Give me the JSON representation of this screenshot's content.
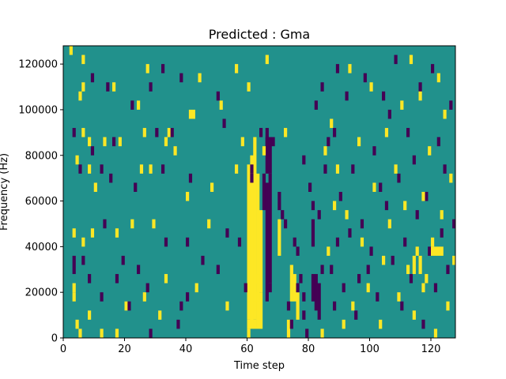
{
  "chart_data": {
    "type": "heatmap",
    "title": "Predicted : Gma",
    "xlabel": "Time step",
    "ylabel": "Frequency (Hz)",
    "xlim": [
      0,
      128
    ],
    "ylim": [
      0,
      128000
    ],
    "grid": false,
    "legend": "none",
    "n_time_steps": 128,
    "n_freq_bins": 32,
    "bin_width_hz": 4000,
    "colors": {
      "background": "#21918c",
      "high": "#fde725",
      "low": "#440154"
    },
    "x_ticks": [
      0,
      20,
      40,
      60,
      80,
      100,
      120
    ],
    "x_tick_labels": [
      "0",
      "20",
      "40",
      "60",
      "80",
      "100",
      "120"
    ],
    "y_ticks": [
      0,
      20000,
      40000,
      60000,
      80000,
      100000,
      120000
    ],
    "y_tick_labels": [
      "0",
      "20000",
      "40000",
      "60000",
      "80000",
      "100000",
      "120000"
    ],
    "cell_values_legend": "1 = yellow (high), -1 = purple (low), all other cells = teal (0)",
    "cells": [
      [
        2,
        124000,
        1
      ],
      [
        3,
        44000,
        1
      ],
      [
        3,
        20000,
        1
      ],
      [
        3,
        16000,
        1
      ],
      [
        3,
        32000,
        -1
      ],
      [
        3,
        88000,
        -1
      ],
      [
        3,
        28000,
        -1
      ],
      [
        4,
        4000,
        1
      ],
      [
        4,
        76000,
        1
      ],
      [
        5,
        0,
        1
      ],
      [
        5,
        104000,
        1
      ],
      [
        5,
        72000,
        -1
      ],
      [
        6,
        120000,
        1
      ],
      [
        6,
        108000,
        1
      ],
      [
        6,
        88000,
        1
      ],
      [
        6,
        40000,
        1
      ],
      [
        6,
        32000,
        -1
      ],
      [
        8,
        84000,
        1
      ],
      [
        8,
        72000,
        1
      ],
      [
        8,
        24000,
        -1
      ],
      [
        8,
        8000,
        1
      ],
      [
        9,
        80000,
        -1
      ],
      [
        9,
        44000,
        1
      ],
      [
        9,
        112000,
        -1
      ],
      [
        10,
        64000,
        1
      ],
      [
        12,
        0,
        1
      ],
      [
        12,
        72000,
        -1
      ],
      [
        12,
        16000,
        -1
      ],
      [
        13,
        48000,
        -1
      ],
      [
        13,
        84000,
        1
      ],
      [
        14,
        108000,
        -1
      ],
      [
        15,
        68000,
        -1
      ],
      [
        16,
        108000,
        1
      ],
      [
        16,
        84000,
        -1
      ],
      [
        17,
        0,
        1
      ],
      [
        17,
        44000,
        1
      ],
      [
        17,
        24000,
        -1
      ],
      [
        18,
        84000,
        1
      ],
      [
        19,
        32000,
        -1
      ],
      [
        20,
        12000,
        1
      ],
      [
        21,
        12000,
        -1
      ],
      [
        22,
        100000,
        -1
      ],
      [
        22,
        48000,
        1
      ],
      [
        23,
        64000,
        -1
      ],
      [
        24,
        100000,
        1
      ],
      [
        24,
        28000,
        -1
      ],
      [
        25,
        72000,
        1
      ],
      [
        26,
        16000,
        1
      ],
      [
        26,
        88000,
        1
      ],
      [
        27,
        20000,
        -1
      ],
      [
        27,
        116000,
        1
      ],
      [
        28,
        0,
        -1
      ],
      [
        28,
        108000,
        -1
      ],
      [
        28,
        72000,
        1
      ],
      [
        29,
        48000,
        1
      ],
      [
        30,
        88000,
        -1
      ],
      [
        31,
        8000,
        1
      ],
      [
        32,
        116000,
        -1
      ],
      [
        32,
        72000,
        -1
      ],
      [
        33,
        40000,
        -1
      ],
      [
        33,
        84000,
        1
      ],
      [
        33,
        24000,
        1
      ],
      [
        34,
        88000,
        1
      ],
      [
        35,
        88000,
        -1
      ],
      [
        36,
        80000,
        1
      ],
      [
        37,
        4000,
        -1
      ],
      [
        38,
        112000,
        -1
      ],
      [
        38,
        12000,
        -1
      ],
      [
        40,
        60000,
        1
      ],
      [
        40,
        40000,
        -1
      ],
      [
        40,
        16000,
        -1
      ],
      [
        41,
        68000,
        -1
      ],
      [
        41,
        96000,
        1
      ],
      [
        42,
        96000,
        1
      ],
      [
        43,
        20000,
        1
      ],
      [
        44,
        112000,
        1
      ],
      [
        45,
        32000,
        -1
      ],
      [
        47,
        48000,
        1
      ],
      [
        48,
        64000,
        1
      ],
      [
        50,
        28000,
        -1
      ],
      [
        50,
        104000,
        -1
      ],
      [
        51,
        100000,
        1
      ],
      [
        52,
        92000,
        -1
      ],
      [
        53,
        12000,
        1
      ],
      [
        53,
        44000,
        -1
      ],
      [
        56,
        116000,
        1
      ],
      [
        56,
        72000,
        1
      ],
      [
        57,
        40000,
        -1
      ],
      [
        58,
        84000,
        1
      ],
      [
        59,
        20000,
        -1
      ],
      [
        60,
        108000,
        1
      ],
      [
        60,
        0,
        1
      ],
      [
        60,
        4000,
        1
      ],
      [
        61,
        72000,
        -1
      ],
      [
        61,
        68000,
        -1
      ],
      [
        62,
        4000,
        1
      ],
      [
        62,
        12000,
        1
      ],
      [
        63,
        16000,
        1
      ],
      [
        63,
        24000,
        1
      ],
      [
        64,
        88000,
        -1
      ],
      [
        65,
        80000,
        1
      ],
      [
        66,
        120000,
        1
      ],
      [
        67,
        20000,
        -1
      ],
      [
        68,
        84000,
        -1
      ],
      [
        70,
        60000,
        -1
      ],
      [
        70,
        56000,
        -1
      ],
      [
        71,
        52000,
        -1
      ],
      [
        72,
        48000,
        -1
      ],
      [
        72,
        88000,
        1
      ],
      [
        73,
        12000,
        -1
      ],
      [
        74,
        4000,
        -1
      ],
      [
        75,
        40000,
        -1
      ],
      [
        76,
        36000,
        -1
      ],
      [
        76,
        20000,
        -1
      ],
      [
        77,
        24000,
        -1
      ],
      [
        78,
        8000,
        -1
      ],
      [
        78,
        16000,
        -1
      ],
      [
        78,
        76000,
        -1
      ],
      [
        79,
        0,
        -1
      ],
      [
        80,
        64000,
        -1
      ],
      [
        81,
        56000,
        -1
      ],
      [
        82,
        100000,
        -1
      ],
      [
        83,
        52000,
        -1
      ],
      [
        84,
        108000,
        -1
      ],
      [
        84,
        28000,
        -1
      ],
      [
        85,
        72000,
        -1
      ],
      [
        86,
        84000,
        -1
      ],
      [
        87,
        28000,
        -1
      ],
      [
        88,
        12000,
        -1
      ],
      [
        88,
        88000,
        -1
      ],
      [
        89,
        40000,
        -1
      ],
      [
        89,
        116000,
        -1
      ],
      [
        90,
        60000,
        -1
      ],
      [
        91,
        20000,
        -1
      ],
      [
        92,
        104000,
        -1
      ],
      [
        93,
        44000,
        -1
      ],
      [
        94,
        72000,
        -1
      ],
      [
        95,
        8000,
        -1
      ],
      [
        96,
        24000,
        -1
      ],
      [
        97,
        48000,
        -1
      ],
      [
        98,
        112000,
        -1
      ],
      [
        99,
        28000,
        -1
      ],
      [
        100,
        36000,
        -1
      ],
      [
        101,
        80000,
        -1
      ],
      [
        102,
        16000,
        -1
      ],
      [
        103,
        64000,
        -1
      ],
      [
        104,
        104000,
        -1
      ],
      [
        105,
        56000,
        -1
      ],
      [
        106,
        96000,
        -1
      ],
      [
        107,
        32000,
        -1
      ],
      [
        108,
        120000,
        -1
      ],
      [
        109,
        68000,
        -1
      ],
      [
        110,
        12000,
        -1
      ],
      [
        111,
        40000,
        -1
      ],
      [
        112,
        88000,
        -1
      ],
      [
        113,
        24000,
        -1
      ],
      [
        114,
        76000,
        -1
      ],
      [
        115,
        52000,
        -1
      ],
      [
        116,
        108000,
        -1
      ],
      [
        117,
        4000,
        -1
      ],
      [
        118,
        60000,
        -1
      ],
      [
        119,
        36000,
        -1
      ],
      [
        120,
        116000,
        -1
      ],
      [
        121,
        20000,
        -1
      ],
      [
        122,
        84000,
        -1
      ],
      [
        123,
        44000,
        -1
      ],
      [
        124,
        72000,
        -1
      ],
      [
        125,
        28000,
        -1
      ],
      [
        126,
        100000,
        -1
      ],
      [
        127,
        48000,
        -1
      ],
      [
        84,
        0,
        1
      ],
      [
        85,
        80000,
        1
      ],
      [
        86,
        36000,
        1
      ],
      [
        87,
        92000,
        1
      ],
      [
        88,
        56000,
        1
      ],
      [
        89,
        72000,
        1
      ],
      [
        91,
        4000,
        1
      ],
      [
        92,
        52000,
        1
      ],
      [
        93,
        116000,
        1
      ],
      [
        94,
        12000,
        1
      ],
      [
        96,
        84000,
        1
      ],
      [
        97,
        40000,
        1
      ],
      [
        99,
        20000,
        1
      ],
      [
        100,
        108000,
        1
      ],
      [
        101,
        64000,
        1
      ],
      [
        103,
        4000,
        1
      ],
      [
        104,
        32000,
        1
      ],
      [
        105,
        88000,
        1
      ],
      [
        106,
        48000,
        1
      ],
      [
        108,
        72000,
        1
      ],
      [
        109,
        16000,
        1
      ],
      [
        110,
        100000,
        1
      ],
      [
        111,
        56000,
        1
      ],
      [
        112,
        28000,
        1
      ],
      [
        113,
        120000,
        1
      ],
      [
        114,
        8000,
        1
      ],
      [
        115,
        36000,
        1
      ],
      [
        116,
        104000,
        1
      ],
      [
        117,
        60000,
        1
      ],
      [
        118,
        24000,
        1
      ],
      [
        119,
        80000,
        1
      ],
      [
        120,
        40000,
        1
      ],
      [
        121,
        0,
        1
      ],
      [
        122,
        112000,
        1
      ],
      [
        123,
        52000,
        1
      ],
      [
        124,
        96000,
        1
      ],
      [
        125,
        12000,
        1
      ],
      [
        126,
        68000,
        1
      ],
      [
        127,
        32000,
        1
      ],
      [
        114,
        28000,
        1
      ],
      [
        114,
        32000,
        1
      ],
      [
        116,
        28000,
        1
      ],
      [
        116,
        32000,
        1
      ],
      [
        117,
        20000,
        1
      ],
      [
        120,
        36000,
        1
      ],
      [
        121,
        36000,
        1
      ],
      [
        122,
        36000,
        1
      ],
      [
        123,
        36000,
        1
      ]
    ],
    "bands": [
      {
        "t": 60,
        "f_from": 8000,
        "f_to": 72000,
        "value": 1
      },
      {
        "t": 61,
        "f_from": 4000,
        "f_to": 76000,
        "value": 1
      },
      {
        "t": 62,
        "f_from": 8000,
        "f_to": 84000,
        "value": 1
      },
      {
        "t": 63,
        "f_from": 4000,
        "f_to": 68000,
        "value": 1
      },
      {
        "t": 64,
        "f_from": 20000,
        "f_to": 52000,
        "value": 1
      },
      {
        "t": 64,
        "f_from": 4000,
        "f_to": 16000,
        "value": 1
      },
      {
        "t": 65,
        "f_from": 56000,
        "f_to": 68000,
        "value": -1
      },
      {
        "t": 66,
        "f_from": 16000,
        "f_to": 64000,
        "value": -1
      },
      {
        "t": 67,
        "f_from": 24000,
        "f_to": 68000,
        "value": -1
      },
      {
        "t": 66,
        "f_from": 72000,
        "f_to": 84000,
        "value": -1
      },
      {
        "t": 67,
        "f_from": 72000,
        "f_to": 84000,
        "value": -1
      },
      {
        "t": 70,
        "f_from": 36000,
        "f_to": 48000,
        "value": 1
      },
      {
        "t": 73,
        "f_from": 0,
        "f_to": 4000,
        "value": 1
      },
      {
        "t": 74,
        "f_from": 16000,
        "f_to": 28000,
        "value": 1
      },
      {
        "t": 75,
        "f_from": 16000,
        "f_to": 24000,
        "value": 1
      },
      {
        "t": 76,
        "f_from": 8000,
        "f_to": 16000,
        "value": 1
      },
      {
        "t": 81,
        "f_from": 16000,
        "f_to": 24000,
        "value": -1
      },
      {
        "t": 82,
        "f_from": 12000,
        "f_to": 24000,
        "value": -1
      },
      {
        "t": 83,
        "f_from": 8000,
        "f_to": 20000,
        "value": -1
      },
      {
        "t": 81,
        "f_from": 40000,
        "f_to": 48000,
        "value": -1
      },
      {
        "t": 66,
        "f_from": 84000,
        "f_to": 88000,
        "value": -1
      }
    ]
  }
}
